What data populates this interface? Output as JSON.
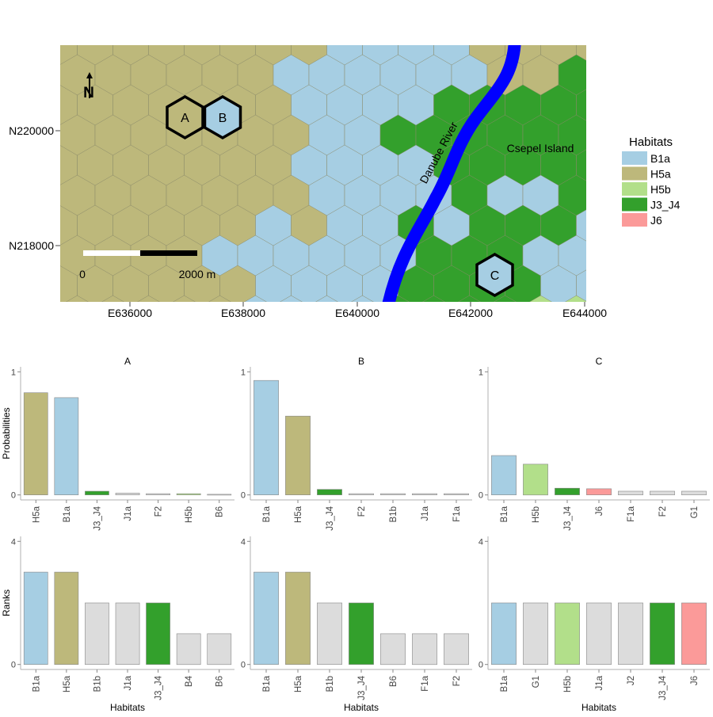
{
  "colors": {
    "B1a": "#a6cee3",
    "H5a": "#bdb87b",
    "H5b": "#b2df8a",
    "J3_J4": "#33a02c",
    "J6": "#fb9a99",
    "other": "#dcdcdc",
    "river": "#0000ff"
  },
  "map": {
    "y_ticks": [
      "N220000",
      "N218000"
    ],
    "x_ticks": [
      "E636000",
      "E638000",
      "E640000",
      "E642000",
      "E644000"
    ],
    "river_label": "Danube River",
    "island_label": "Csepel Island",
    "north_label": "N",
    "scale_start": "0",
    "scale_end": "2000 m",
    "cell_labels": [
      "A",
      "B",
      "C"
    ]
  },
  "legend": {
    "title": "Habitats",
    "items": [
      "B1a",
      "H5a",
      "H5b",
      "J3_J4",
      "J6"
    ]
  },
  "chart_data": [
    {
      "type": "bar",
      "title": "A",
      "ylabel": "Probabilities",
      "xlabel": "",
      "ylim": [
        0,
        1
      ],
      "yticks": [
        "0",
        "1"
      ],
      "categories": [
        "H5a",
        "B1a",
        "J3_J4",
        "J1a",
        "F2",
        "H5b",
        "B6"
      ],
      "values": [
        0.83,
        0.79,
        0.03,
        0.015,
        0.01,
        0.01,
        0.005
      ]
    },
    {
      "type": "bar",
      "title": "B",
      "ylabel": "",
      "xlabel": "",
      "ylim": [
        0,
        1
      ],
      "yticks": [
        "0",
        "1"
      ],
      "categories": [
        "B1a",
        "H5a",
        "J3_J4",
        "F2",
        "B1b",
        "J1a",
        "F1a"
      ],
      "values": [
        0.93,
        0.64,
        0.045,
        0.01,
        0.01,
        0.01,
        0.01
      ]
    },
    {
      "type": "bar",
      "title": "C",
      "ylabel": "",
      "xlabel": "",
      "ylim": [
        0,
        1
      ],
      "yticks": [
        "0",
        "1"
      ],
      "categories": [
        "B1a",
        "H5b",
        "J3_J4",
        "J6",
        "F1a",
        "F2",
        "G1"
      ],
      "values": [
        0.32,
        0.25,
        0.055,
        0.05,
        0.03,
        0.03,
        0.03
      ]
    },
    {
      "type": "bar",
      "title": "",
      "ylabel": "Ranks",
      "xlabel": "Habitats",
      "ylim": [
        0,
        4
      ],
      "yticks": [
        "0",
        "4"
      ],
      "categories": [
        "B1a",
        "H5a",
        "B1b",
        "J1a",
        "J3_J4",
        "B4",
        "B6"
      ],
      "values": [
        3,
        3,
        2,
        2,
        2,
        1,
        1
      ]
    },
    {
      "type": "bar",
      "title": "",
      "ylabel": "",
      "xlabel": "Habitats",
      "ylim": [
        0,
        4
      ],
      "yticks": [
        "0",
        "4"
      ],
      "categories": [
        "B1a",
        "H5a",
        "B1b",
        "J3_J4",
        "B6",
        "F1a",
        "F2"
      ],
      "values": [
        3,
        3,
        2,
        2,
        1,
        1,
        1
      ]
    },
    {
      "type": "bar",
      "title": "",
      "ylabel": "",
      "xlabel": "Habitats",
      "ylim": [
        0,
        4
      ],
      "yticks": [
        "0",
        "4"
      ],
      "categories": [
        "B1a",
        "G1",
        "H5b",
        "J1a",
        "J2",
        "J3_J4",
        "J6"
      ],
      "values": [
        2,
        2,
        2,
        2,
        2,
        2,
        2
      ]
    }
  ]
}
